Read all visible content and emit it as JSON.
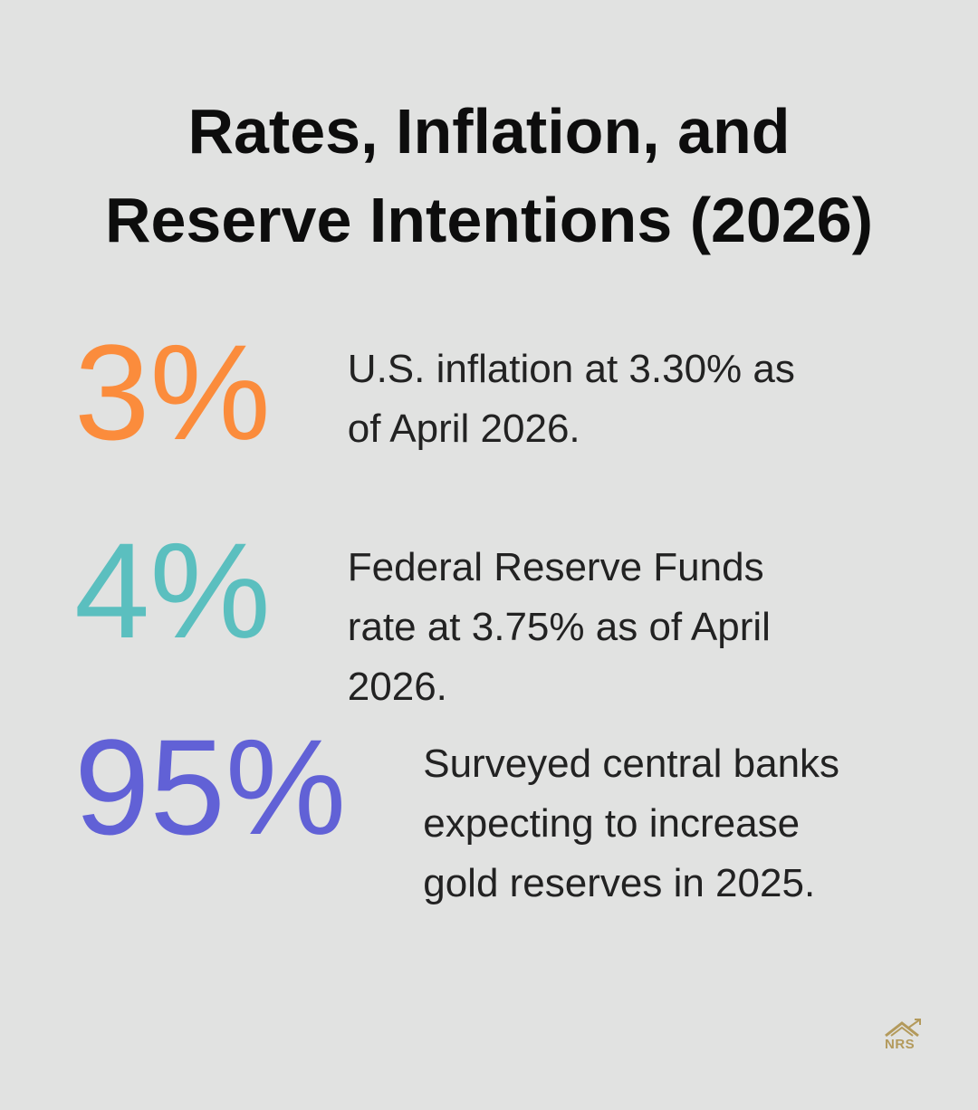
{
  "title": "Rates, Inflation, and Reserve Intentions (2026)",
  "stats": [
    {
      "value": "3%",
      "description": "U.S. inflation at 3.30% as of April 2026.",
      "color": "#fb8c3c"
    },
    {
      "value": "4%",
      "description": "Federal Reserve Funds rate at 3.75% as of April 2026.",
      "color": "#5bbfbf"
    },
    {
      "value": "95%",
      "description": "Surveyed central banks expecting to increase gold reserves in 2025.",
      "color": "#6161d6"
    }
  ],
  "logo": "NRS"
}
